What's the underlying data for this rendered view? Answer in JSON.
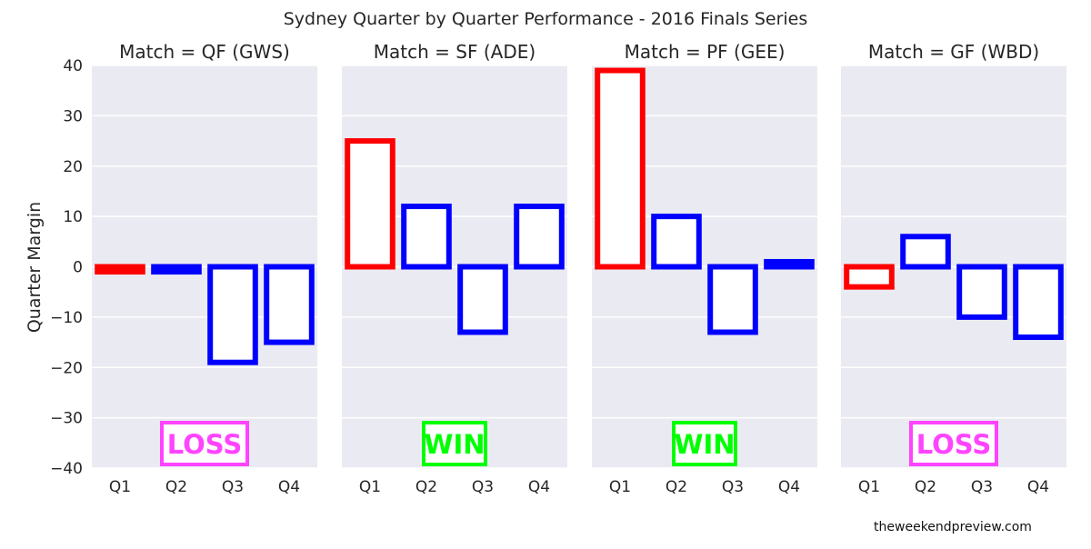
{
  "chart_data": {
    "type": "bar",
    "title": "Sydney Quarter by Quarter Performance - 2016 Finals Series",
    "ylabel": "Quarter Margin",
    "ylim": [
      -40,
      40
    ],
    "yticks": [
      -40,
      -30,
      -20,
      -10,
      0,
      10,
      20,
      30,
      40
    ],
    "ytick_labels": [
      "−40",
      "−30",
      "−20",
      "−10",
      "0",
      "10",
      "20",
      "30",
      "40"
    ],
    "categories": [
      "Q1",
      "Q2",
      "Q3",
      "Q4"
    ],
    "grid": true,
    "colors": {
      "first_quarter": "#ff0000",
      "other_quarters": "#0000ff",
      "panel_bg": "#eaeaf2",
      "bar_fill": "#ffffff",
      "loss": "#ff44ff",
      "win": "#00ff00"
    },
    "panels": [
      {
        "title": "Match = QF (GWS)",
        "values": [
          -1,
          -1,
          -19,
          -15
        ],
        "result": "LOSS"
      },
      {
        "title": "Match = SF (ADE)",
        "values": [
          25,
          12,
          -13,
          12
        ],
        "result": "WIN"
      },
      {
        "title": "Match = PF (GEE)",
        "values": [
          39,
          10,
          -13,
          1
        ],
        "result": "WIN"
      },
      {
        "title": "Match = GF (WBD)",
        "values": [
          -4,
          6,
          -10,
          -14
        ],
        "result": "LOSS"
      }
    ],
    "watermark": "theweekendpreview.com"
  }
}
